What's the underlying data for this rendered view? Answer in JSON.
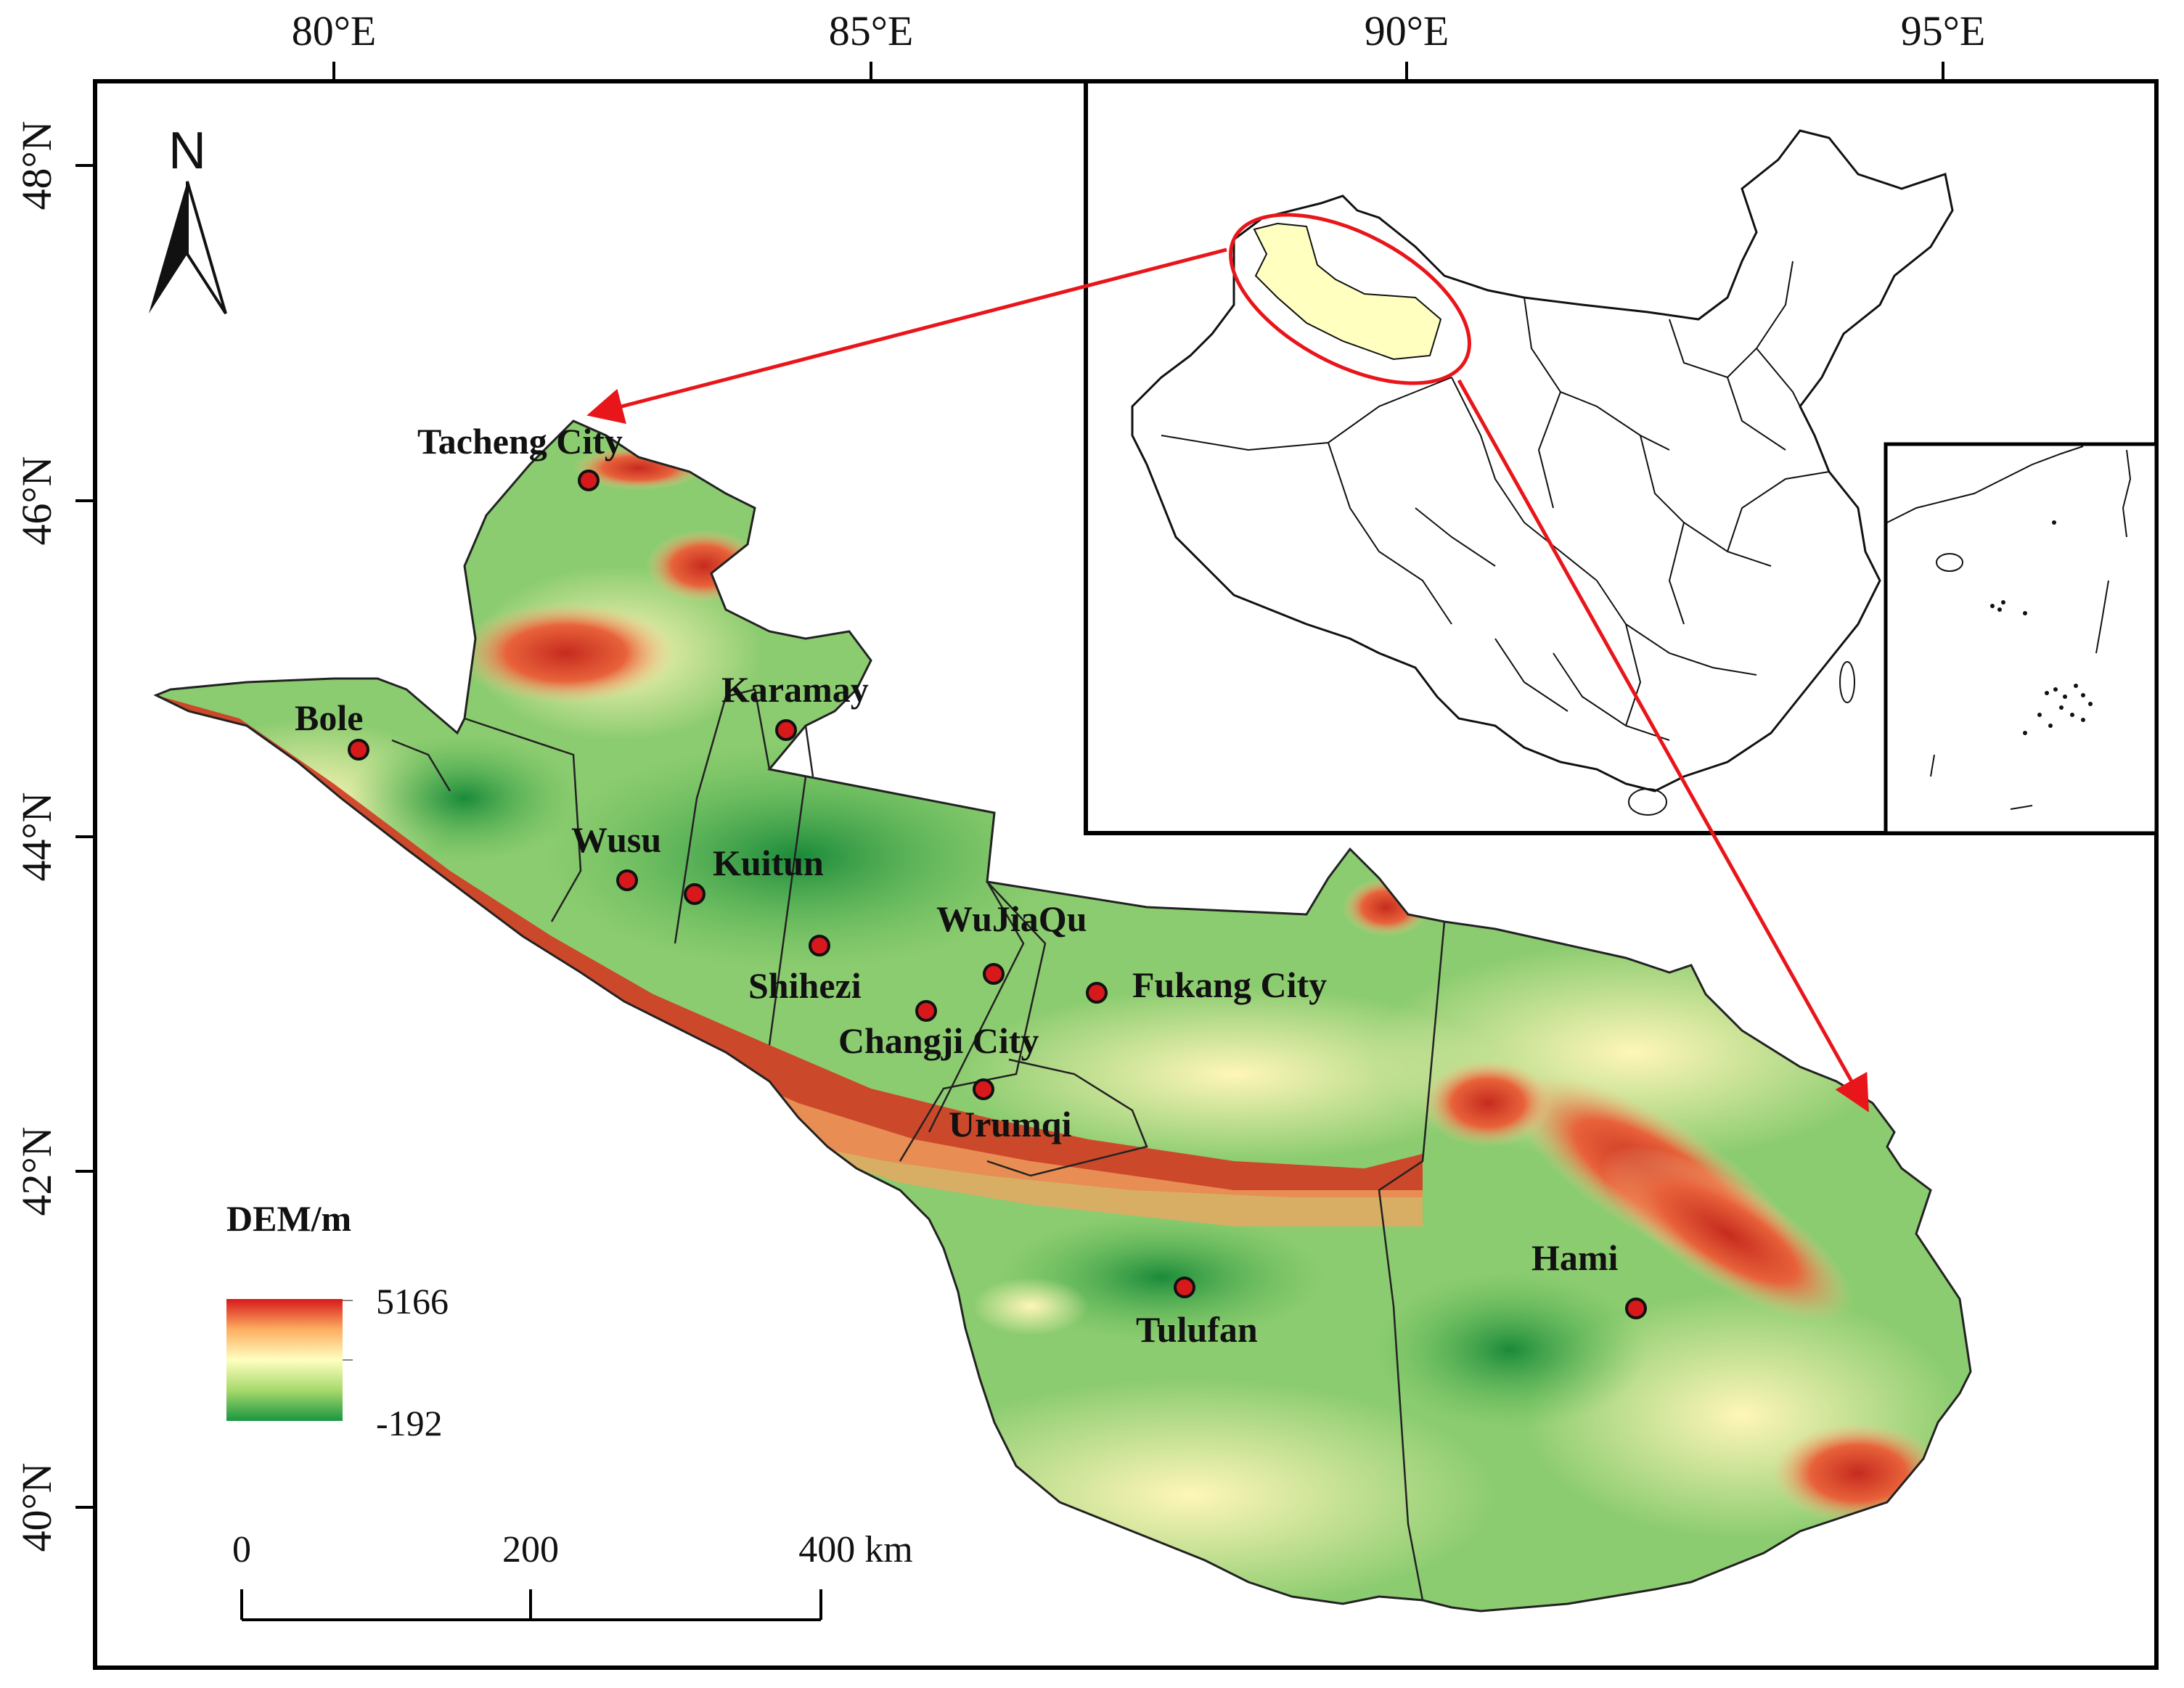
{
  "longitude_labels": [
    "80°E",
    "85°E",
    "90°E",
    "95°E"
  ],
  "latitude_labels": [
    "48°N",
    "46°N",
    "44°N",
    "42°N",
    "40°N"
  ],
  "north_arrow": {
    "label": "N",
    "icon": "north-arrow-icon"
  },
  "cities": [
    {
      "name": "Tacheng City"
    },
    {
      "name": "Karamay"
    },
    {
      "name": "Bole"
    },
    {
      "name": "Wusu"
    },
    {
      "name": "Kuitun"
    },
    {
      "name": "Shihezi"
    },
    {
      "name": "WuJiaQu"
    },
    {
      "name": "Fukang City"
    },
    {
      "name": "Changji City"
    },
    {
      "name": "Urumqi"
    },
    {
      "name": "Tulufan"
    },
    {
      "name": "Hami"
    }
  ],
  "legend": {
    "title": "DEM/m",
    "max": "5166",
    "min": "-192",
    "colors": [
      "#d7191c",
      "#fdae61",
      "#ffffc0",
      "#a6d96a",
      "#1a9641"
    ]
  },
  "scale_bar": {
    "labels": [
      "0",
      "200",
      "400 km"
    ]
  },
  "colors": {
    "highlight_region": "#ffffc0",
    "arrow": "#e8161b",
    "city_marker": "#d7191c",
    "frame": "#000000"
  }
}
